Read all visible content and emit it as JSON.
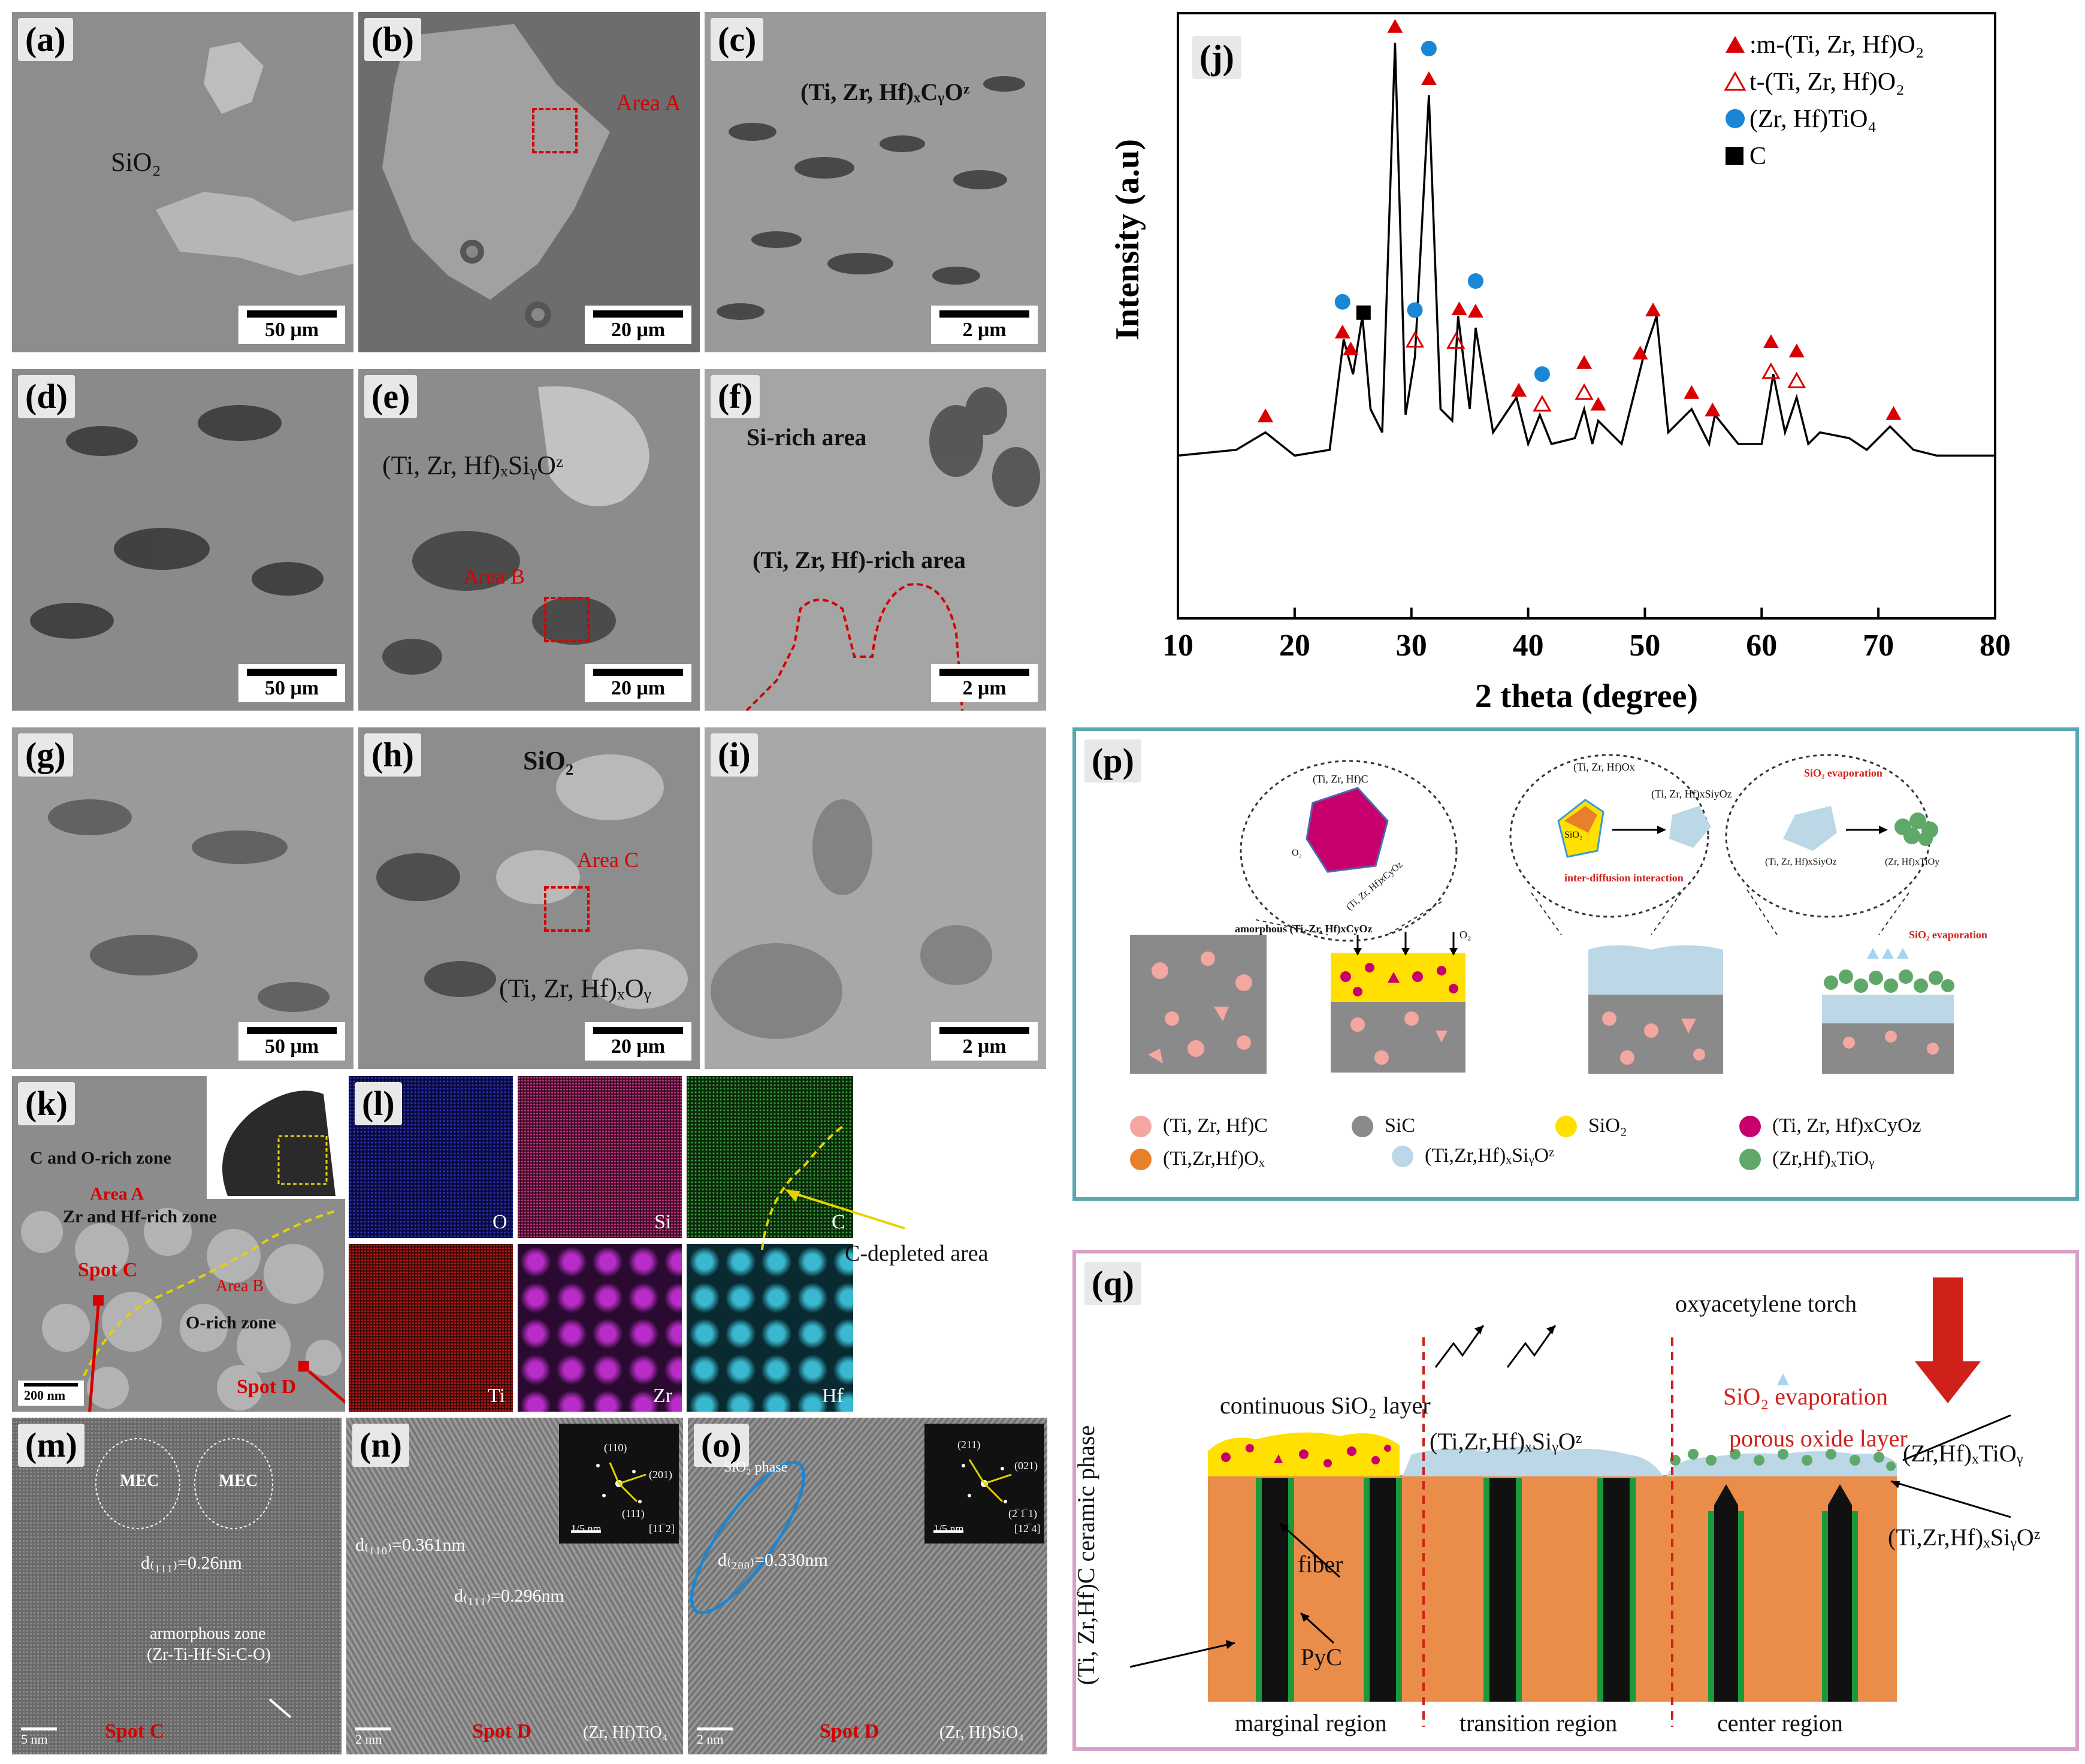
{
  "panels": {
    "a": {
      "tag": "(a)",
      "label": "SiO₂",
      "scale": "50 μm"
    },
    "b": {
      "tag": "(b)",
      "area": "Area A",
      "scale": "20 μm"
    },
    "c": {
      "tag": "(c)",
      "label": "(Ti, Zr, Hf)ₓCᵧOᶻ",
      "scale": "2 μm"
    },
    "d": {
      "tag": "(d)",
      "scale": "50 μm"
    },
    "e": {
      "tag": "(e)",
      "label": "(Ti, Zr, Hf)ₓSiᵧOᶻ",
      "area": "Area B",
      "scale": "20 μm"
    },
    "f": {
      "tag": "(f)",
      "label1": "Si-rich area",
      "label2": "(Ti, Zr, Hf)-rich area",
      "scale": "2 μm"
    },
    "g": {
      "tag": "(g)",
      "scale": "50 μm"
    },
    "h": {
      "tag": "(h)",
      "label1": "SiO₂",
      "label2": "(Ti, Zr, Hf)ₓOᵧ",
      "area": "Area C",
      "scale": "20 μm"
    },
    "i": {
      "tag": "(i)",
      "scale": "2 μm"
    },
    "k": {
      "tag": "(k)",
      "zone1": "C and O-rich zone",
      "areaA": "Area A",
      "zone2": "Zr and Hf-rich zone",
      "spotC": "Spot  C",
      "areaB": "Area B",
      "zone3": "O-rich zone",
      "spotD": "Spot  D",
      "scale": "200 nm"
    },
    "l": {
      "tag": "(l)",
      "elements": [
        "O",
        "Si",
        "C",
        "Ti",
        "Zr",
        "Hf"
      ],
      "callout": "C-depleted area"
    },
    "m": {
      "tag": "(m)",
      "mec1": "MEC",
      "mec2": "MEC",
      "d": "d₍₁₁₁₎=0.26nm",
      "amorph1": "armorphous zone",
      "amorph2": "(Zr-Ti-Hf-Si-C-O)",
      "spot": "Spot  C",
      "scale": "5 nm"
    },
    "n": {
      "tag": "(n)",
      "d1": "d₍₁₁₀₎=0.361nm",
      "d2": "d₍₁₁₁₎=0.296nm",
      "spot": "Spot  D",
      "phase": "(Zr, Hf)TiO₄",
      "fft": [
        "(110)",
        "(201)",
        "(111)"
      ],
      "fftscale": "1/5 nm",
      "zone": "[11̅ 2]",
      "scale": "2 nm"
    },
    "o": {
      "tag": "(o)",
      "phaselabel": "SiO₂ phase",
      "d": "d₍₂₀₀₎=0.330nm",
      "spot": "Spot  D",
      "phase": "(Zr, Hf)SiO₄",
      "fft": [
        "(211)",
        "(021)",
        "(2̅ 1̅ 1)"
      ],
      "fftscale": "1/5 nm",
      "zone": "[12̅ 4]",
      "scale": "2 nm"
    }
  },
  "chart_data": {
    "type": "line",
    "tag": "(j)",
    "xlabel": "2 theta (degree)",
    "ylabel": "Intensity (a.u)",
    "xlim": [
      10,
      80
    ],
    "xticks": [
      "10",
      "20",
      "30",
      "40",
      "50",
      "60",
      "70",
      "80"
    ],
    "series": [
      {
        "name": "XRD pattern",
        "x": [
          10,
          15,
          17.5,
          20,
          23,
          24.2,
          25,
          25.8,
          26.5,
          27.5,
          28.6,
          29.5,
          30.3,
          31.5,
          32.5,
          33.5,
          34,
          35,
          35.5,
          37,
          39,
          40,
          41,
          42,
          44,
          44.8,
          45.5,
          46,
          48,
          49.5,
          50,
          51,
          52,
          54,
          55.5,
          56,
          58,
          60,
          61,
          62,
          63,
          64,
          65,
          67.5,
          69,
          71,
          73,
          75,
          80
        ],
        "y": [
          0.28,
          0.29,
          0.32,
          0.28,
          0.29,
          0.48,
          0.42,
          0.52,
          0.36,
          0.32,
          0.99,
          0.35,
          0.45,
          0.9,
          0.36,
          0.34,
          0.52,
          0.36,
          0.5,
          0.32,
          0.38,
          0.3,
          0.35,
          0.3,
          0.31,
          0.36,
          0.3,
          0.34,
          0.3,
          0.42,
          0.46,
          0.52,
          0.32,
          0.36,
          0.3,
          0.35,
          0.3,
          0.3,
          0.42,
          0.32,
          0.38,
          0.3,
          0.32,
          0.31,
          0.29,
          0.33,
          0.29,
          0.28,
          0.28
        ]
      }
    ],
    "legend": [
      {
        "marker": "filled-triangle",
        "color": "#d90000",
        "label": "m-(Ti, Zr, Hf)O₂"
      },
      {
        "marker": "open-triangle",
        "color": "#d90000",
        "label": "t-(Ti, Zr, Hf)O₂"
      },
      {
        "marker": "circle",
        "color": "#1a86d6",
        "label": "(Zr, Hf)TiO₄"
      },
      {
        "marker": "square",
        "color": "#000000",
        "label": "C"
      }
    ],
    "markers": [
      {
        "x": 17.5,
        "type": "filled-triangle"
      },
      {
        "x": 24.1,
        "type": "filled-triangle"
      },
      {
        "x": 24.1,
        "type": "circle"
      },
      {
        "x": 24.8,
        "type": "filled-triangle"
      },
      {
        "x": 25.9,
        "type": "square"
      },
      {
        "x": 28.6,
        "type": "filled-triangle"
      },
      {
        "x": 30.3,
        "type": "open-triangle"
      },
      {
        "x": 30.3,
        "type": "circle"
      },
      {
        "x": 31.5,
        "type": "filled-triangle"
      },
      {
        "x": 31.5,
        "type": "circle"
      },
      {
        "x": 33.8,
        "type": "open-triangle"
      },
      {
        "x": 34.1,
        "type": "filled-triangle"
      },
      {
        "x": 35.5,
        "type": "filled-triangle"
      },
      {
        "x": 35.5,
        "type": "circle"
      },
      {
        "x": 39.2,
        "type": "filled-triangle"
      },
      {
        "x": 41.2,
        "type": "open-triangle"
      },
      {
        "x": 41.2,
        "type": "circle"
      },
      {
        "x": 44.8,
        "type": "open-triangle"
      },
      {
        "x": 44.8,
        "type": "filled-triangle"
      },
      {
        "x": 46.0,
        "type": "filled-triangle"
      },
      {
        "x": 49.6,
        "type": "filled-triangle"
      },
      {
        "x": 50.7,
        "type": "filled-triangle"
      },
      {
        "x": 54.0,
        "type": "filled-triangle"
      },
      {
        "x": 55.8,
        "type": "filled-triangle"
      },
      {
        "x": 60.8,
        "type": "open-triangle"
      },
      {
        "x": 60.8,
        "type": "filled-triangle"
      },
      {
        "x": 63.0,
        "type": "open-triangle"
      },
      {
        "x": 63.0,
        "type": "filled-triangle"
      },
      {
        "x": 71.3,
        "type": "filled-triangle"
      }
    ]
  },
  "schematic_p": {
    "tag": "(p)",
    "bubble1": {
      "center": "(Ti, Zr, Hf)C",
      "o": "O₂",
      "bottom": "(Ti, Zr, Hf)xCyOz"
    },
    "bubble2": {
      "top": "(Ti, Zr, Hf)Ox",
      "left": "SiO₂",
      "right": "(Ti, Zr, Hf)xSiyOz",
      "bottom": "inter-diffusion interaction"
    },
    "bubble3": {
      "top": "SiO₂ evaporation",
      "left": "(Ti, Zr, Hf)xSiyOz",
      "right": "(Zr, Hf)xTiOy"
    },
    "amorph": "amorphous (Ti, Zr, Hf)xCyOz",
    "o2": "O₂",
    "evap": "SiO₂ evaporation",
    "legend": [
      {
        "color": "#f4a6a0",
        "label": "(Ti, Zr, Hf)C"
      },
      {
        "color": "#8a8a8a",
        "label": "SiC"
      },
      {
        "color": "#ffe000",
        "label": "SiO₂"
      },
      {
        "color": "#c8006e",
        "label": "(Ti, Zr, Hf)xCyOz"
      },
      {
        "color": "#e8802a",
        "label": "(Ti,Zr,Hf)Oₓ"
      },
      {
        "color": "#bcd7e6",
        "label": "(Ti,Zr,Hf)ₓSiᵧOᶻ"
      },
      {
        "color": "#5fa86a",
        "label": "(Zr,Hf)ₓTiOᵧ"
      }
    ]
  },
  "schematic_q": {
    "tag": "(q)",
    "torch": "oxyacetylene torch",
    "sio2layer": "continuous SiO₂ layer",
    "mid": "(Ti,Zr,Hf)ₓSiᵧOᶻ",
    "evap": "SiO₂ evaporation",
    "porous": "porous oxide layer",
    "zrhf": "(Zr,Hf)ₓTiOᵧ",
    "rightlbl": "(Ti,Zr,Hf)ₓSiᵧOᶻ",
    "fiber": "fiber",
    "pyc": "PyC",
    "side": "(Ti, Zr,Hf)C ceramic phase",
    "regions": [
      "marginal region",
      "transition region",
      "center region"
    ]
  }
}
